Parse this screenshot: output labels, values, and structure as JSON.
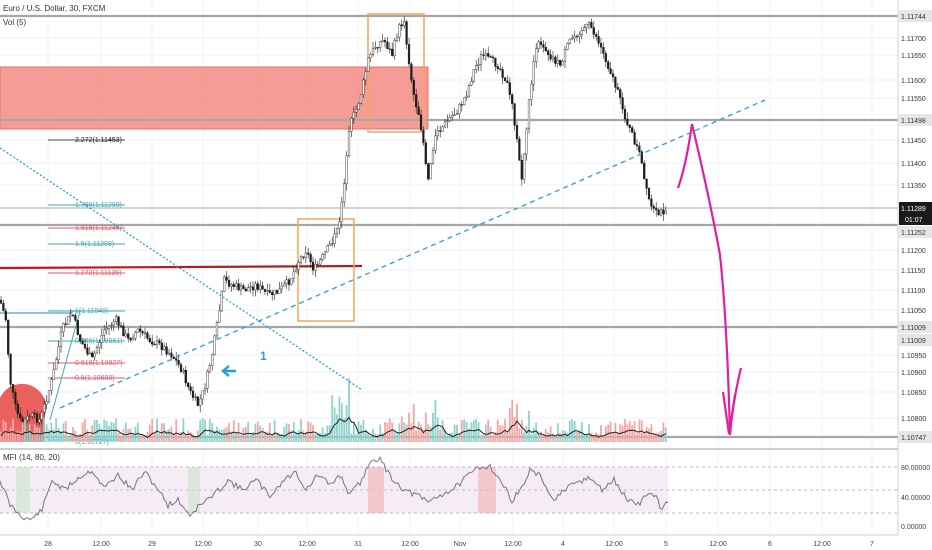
{
  "header": {
    "symbol_title": "Euro / U.S. Dollar, 30, FXCM",
    "volume_label": "Vol (5)",
    "mfi_label": "MFI (14, 80, 20)"
  },
  "price_axis": {
    "ticks": [
      "1.11744",
      "1.11700",
      "1.11650",
      "1.11600",
      "1.11550",
      "1.11498",
      "1.11450",
      "1.11400",
      "1.11350",
      "1.11289",
      "1.11252",
      "1.11200",
      "1.11150",
      "1.11100",
      "1.11050",
      "1.11009",
      "1.11009",
      "1.10950",
      "1.10900",
      "1.10850",
      "1.10800",
      "1.10747"
    ],
    "highlight_labels": [
      "1.11744",
      "1.11498",
      "1.11289",
      "1.11252",
      "1.11009",
      "1.11009",
      "1.10747"
    ],
    "current_price": "1.11289",
    "countdown": "01:07"
  },
  "mfi_axis": {
    "ticks": [
      "80.00000",
      "40.00000",
      "0.00000"
    ]
  },
  "time_axis": {
    "ticks": [
      "28",
      "12:00",
      "29",
      "12:00",
      "30",
      "12:00",
      "31",
      "12:00",
      "Nov",
      "12:00",
      "4",
      "12:00",
      "5",
      "12:00",
      "6",
      "12:00",
      "7"
    ]
  },
  "fib_labels": [
    "2.272(1.11453)",
    "1.786(1.11299)",
    "1.618(1.11245)",
    "1.5(1.11208)",
    "1.272(1.11135)",
    "1(1.11049)",
    "0.786(1.10981)",
    "0.618(1.10927)",
    "0.5(1.10890)",
    "0(1.10727)"
  ],
  "annotations": {
    "wave_label": "1"
  },
  "colors": {
    "bull": "#26a69a",
    "bear": "#ef5350",
    "fib_teal": "#3fa9b8",
    "fib_red": "#e05a6b",
    "resistance_zone": "#f28b82",
    "support_line": "#b71c1c",
    "trend_dashed": "#2a9fd6",
    "arrow_magenta": "#e0209e",
    "box_orange": "#f4a460",
    "mfi_band": "#f6ecf6"
  },
  "chart_data": {
    "type": "candlestick",
    "title": "Euro / U.S. Dollar, 30, FXCM",
    "key_levels": [
      1.11744,
      1.11498,
      1.11289,
      1.11252,
      1.11009,
      1.10747
    ],
    "ylim": [
      1.1071,
      1.1178
    ],
    "mfi": {
      "params": "14, 80, 20",
      "upper": 80,
      "lower": 20,
      "range": [
        0,
        100
      ]
    }
  }
}
